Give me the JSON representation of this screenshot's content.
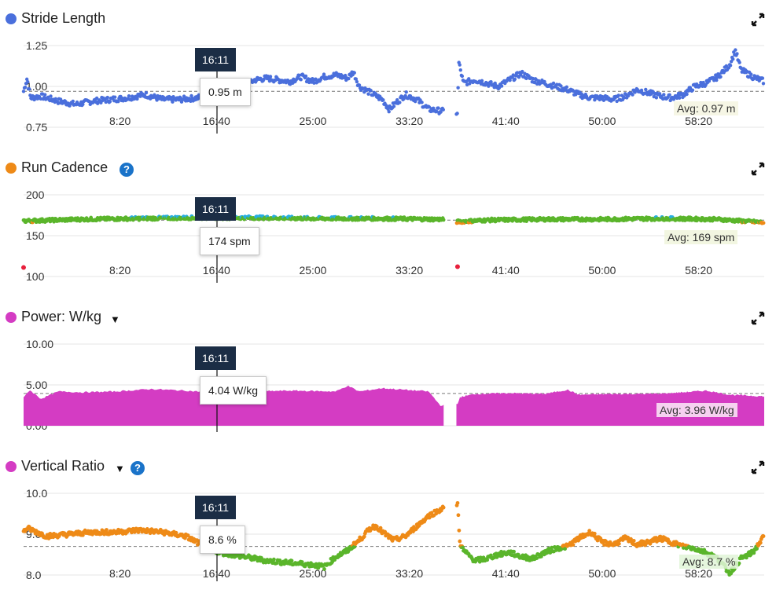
{
  "x_ticks": [
    "8:20",
    "16:40",
    "25:00",
    "33:20",
    "41:40",
    "50:00",
    "58:20"
  ],
  "cursor_time": "16:11",
  "colors": {
    "blue": "#4a6fdc",
    "orange": "#ee8a17",
    "green": "#5ab52b",
    "cyan": "#27aee2",
    "red": "#e8203c",
    "magenta": "#d43cc3",
    "tag_bg": "#1b2d45",
    "help": "#1a73c9"
  },
  "panels": [
    {
      "title": "Stride Length",
      "dot_color": "#4a6fdc",
      "y_ticks": [
        "1.25",
        "1.00",
        "0.75"
      ],
      "tooltip": "0.95 m",
      "avg_label": "Avg: 0.97 m"
    },
    {
      "title": "Run Cadence",
      "dot_color": "#ee8a17",
      "help_icon": "?",
      "y_ticks": [
        "200",
        "150",
        "100"
      ],
      "tooltip": "174 spm",
      "avg_label": "Avg: 169 spm"
    },
    {
      "title": "Power: W/kg",
      "dot_color": "#d43cc3",
      "caret": "▼",
      "y_ticks": [
        "10.00",
        "5.00",
        "0.00"
      ],
      "tooltip": "4.04 W/kg",
      "avg_label": "Avg: 3.96 W/kg"
    },
    {
      "title": "Vertical Ratio",
      "dot_color": "#d43cc3",
      "caret": "▼",
      "help_icon": "?",
      "y_ticks": [
        "10.0",
        "9.0",
        "8.0"
      ],
      "tooltip": "8.6 %",
      "avg_label": "Avg: 8.7 %"
    }
  ],
  "chart_data": [
    {
      "type": "scatter",
      "title": "Stride Length",
      "unit": "m",
      "ylim": [
        0.75,
        1.25
      ],
      "xlim_minutes": [
        0,
        64
      ],
      "x_ticks_minutes": [
        8.333,
        16.667,
        25,
        33.333,
        41.667,
        50,
        58.333
      ],
      "avg": 0.97,
      "cursor": {
        "time": "16:11",
        "value": 0.95
      },
      "gap_minutes": [
        36.3,
        37.4
      ],
      "keypoints": [
        [
          0,
          0.97
        ],
        [
          0.3,
          1.05
        ],
        [
          0.6,
          0.93
        ],
        [
          1.5,
          0.94
        ],
        [
          3,
          0.91
        ],
        [
          4.5,
          0.89
        ],
        [
          6,
          0.91
        ],
        [
          7.5,
          0.92
        ],
        [
          9,
          0.93
        ],
        [
          10.5,
          0.95
        ],
        [
          12,
          0.92
        ],
        [
          13.5,
          0.92
        ],
        [
          15,
          0.93
        ],
        [
          16,
          0.95
        ],
        [
          17,
          1.0
        ],
        [
          18,
          1.02
        ],
        [
          19,
          1.0
        ],
        [
          20,
          1.04
        ],
        [
          21,
          1.05
        ],
        [
          22,
          1.04
        ],
        [
          23,
          1.03
        ],
        [
          24,
          1.06
        ],
        [
          25,
          1.03
        ],
        [
          26,
          1.06
        ],
        [
          27,
          1.07
        ],
        [
          28,
          1.05
        ],
        [
          28.5,
          1.09
        ],
        [
          29,
          1.0
        ],
        [
          30,
          0.96
        ],
        [
          31,
          0.92
        ],
        [
          31.6,
          0.86
        ],
        [
          32.2,
          0.9
        ],
        [
          33,
          0.95
        ],
        [
          34,
          0.92
        ],
        [
          35,
          0.86
        ],
        [
          36,
          0.85
        ],
        [
          37.5,
          0.84
        ],
        [
          37.6,
          1.15
        ],
        [
          38,
          1.02
        ],
        [
          39,
          1.04
        ],
        [
          40,
          1.02
        ],
        [
          41,
          1.0
        ],
        [
          42,
          1.04
        ],
        [
          43,
          1.08
        ],
        [
          44,
          1.04
        ],
        [
          45,
          1.02
        ],
        [
          46,
          1.0
        ],
        [
          47,
          0.98
        ],
        [
          48,
          0.95
        ],
        [
          49,
          0.93
        ],
        [
          50,
          0.93
        ],
        [
          51,
          0.92
        ],
        [
          52,
          0.94
        ],
        [
          53,
          0.98
        ],
        [
          54,
          0.96
        ],
        [
          55,
          0.94
        ],
        [
          56,
          0.93
        ],
        [
          57,
          0.95
        ],
        [
          58,
          1.0
        ],
        [
          59,
          1.02
        ],
        [
          60,
          1.06
        ],
        [
          61,
          1.13
        ],
        [
          61.5,
          1.22
        ],
        [
          62,
          1.1
        ],
        [
          63,
          1.06
        ],
        [
          64,
          1.03
        ]
      ]
    },
    {
      "type": "scatter",
      "title": "Run Cadence",
      "unit": "spm",
      "ylim": [
        100,
        200
      ],
      "xlim_minutes": [
        0,
        64
      ],
      "x_ticks_minutes": [
        8.333,
        16.667,
        25,
        33.333,
        41.667,
        50,
        58.333
      ],
      "avg": 169,
      "cursor": {
        "time": "16:11",
        "value": 174
      },
      "gap_minutes": [
        36.3,
        37.4
      ],
      "keypoints": [
        [
          0,
          168
        ],
        [
          5,
          170
        ],
        [
          10,
          171
        ],
        [
          15,
          172
        ],
        [
          20,
          172
        ],
        [
          25,
          171
        ],
        [
          30,
          171
        ],
        [
          36,
          170
        ],
        [
          37.5,
          167
        ],
        [
          40,
          169
        ],
        [
          45,
          170
        ],
        [
          50,
          170
        ],
        [
          55,
          171
        ],
        [
          60,
          170
        ],
        [
          64,
          166
        ]
      ],
      "outliers": [
        [
          0,
          111
        ],
        [
          37.5,
          112
        ]
      ]
    },
    {
      "type": "area",
      "title": "Power: W/kg",
      "unit": "W/kg",
      "ylim": [
        0,
        10
      ],
      "xlim_minutes": [
        0,
        64
      ],
      "x_ticks_minutes": [
        8.333,
        16.667,
        25,
        33.333,
        41.667,
        50,
        58.333
      ],
      "avg": 3.96,
      "cursor": {
        "time": "16:11",
        "value": 4.04
      },
      "gap_minutes": [
        36.3,
        37.4
      ],
      "keypoints": [
        [
          0,
          3.4
        ],
        [
          0.5,
          4.4
        ],
        [
          1.5,
          3.3
        ],
        [
          3,
          4.2
        ],
        [
          5,
          4.1
        ],
        [
          8,
          4.2
        ],
        [
          11,
          4.5
        ],
        [
          14,
          4.3
        ],
        [
          16,
          4.1
        ],
        [
          18,
          4.3
        ],
        [
          20,
          4.2
        ],
        [
          23,
          4.3
        ],
        [
          27,
          4.2
        ],
        [
          28,
          4.9
        ],
        [
          29,
          4.2
        ],
        [
          31,
          4.6
        ],
        [
          33,
          4.4
        ],
        [
          35,
          4.2
        ],
        [
          36,
          2.5
        ],
        [
          37.5,
          2.6
        ],
        [
          37.7,
          3.5
        ],
        [
          39,
          3.9
        ],
        [
          42,
          4.0
        ],
        [
          45,
          3.9
        ],
        [
          47,
          4.4
        ],
        [
          48,
          3.8
        ],
        [
          51,
          3.9
        ],
        [
          54,
          3.9
        ],
        [
          56,
          4.0
        ],
        [
          58,
          4.2
        ],
        [
          59,
          4.3
        ],
        [
          61,
          3.8
        ],
        [
          64,
          3.6
        ]
      ]
    },
    {
      "type": "scatter",
      "title": "Vertical Ratio",
      "unit": "%",
      "ylim": [
        8.0,
        10.0
      ],
      "xlim_minutes": [
        0,
        64
      ],
      "x_ticks_minutes": [
        8.333,
        16.667,
        25,
        33.333,
        41.667,
        50,
        58.333
      ],
      "avg": 8.7,
      "cursor": {
        "time": "16:11",
        "value": 8.6
      },
      "gap_minutes": [
        36.3,
        37.4
      ],
      "keypoints": [
        [
          0,
          9.05
        ],
        [
          0.3,
          9.15
        ],
        [
          2,
          8.95
        ],
        [
          4,
          9.0
        ],
        [
          6,
          9.05
        ],
        [
          8,
          9.05
        ],
        [
          10,
          9.1
        ],
        [
          12,
          9.05
        ],
        [
          14,
          8.95
        ],
        [
          15,
          8.8
        ],
        [
          16,
          8.65
        ],
        [
          17,
          8.55
        ],
        [
          19,
          8.45
        ],
        [
          21,
          8.35
        ],
        [
          23,
          8.3
        ],
        [
          25,
          8.25
        ],
        [
          26,
          8.2
        ],
        [
          27,
          8.45
        ],
        [
          28,
          8.6
        ],
        [
          29,
          8.85
        ],
        [
          30,
          9.15
        ],
        [
          30.5,
          9.2
        ],
        [
          31,
          9.05
        ],
        [
          32,
          8.85
        ],
        [
          33,
          8.95
        ],
        [
          34,
          9.2
        ],
        [
          35,
          9.45
        ],
        [
          36,
          9.6
        ],
        [
          37.5,
          9.75
        ],
        [
          37.7,
          8.8
        ],
        [
          38,
          8.6
        ],
        [
          39,
          8.35
        ],
        [
          40,
          8.4
        ],
        [
          41,
          8.5
        ],
        [
          42,
          8.55
        ],
        [
          43,
          8.45
        ],
        [
          44,
          8.4
        ],
        [
          45,
          8.55
        ],
        [
          46,
          8.65
        ],
        [
          47,
          8.7
        ],
        [
          48,
          8.9
        ],
        [
          49,
          9.05
        ],
        [
          50,
          8.8
        ],
        [
          51,
          8.75
        ],
        [
          52,
          8.9
        ],
        [
          53,
          8.75
        ],
        [
          54,
          8.8
        ],
        [
          55,
          8.9
        ],
        [
          56,
          8.8
        ],
        [
          57,
          8.7
        ],
        [
          58,
          8.65
        ],
        [
          59,
          8.55
        ],
        [
          60,
          8.4
        ],
        [
          61,
          8.05
        ],
        [
          62,
          8.4
        ],
        [
          63,
          8.55
        ],
        [
          64,
          8.95
        ]
      ]
    }
  ]
}
